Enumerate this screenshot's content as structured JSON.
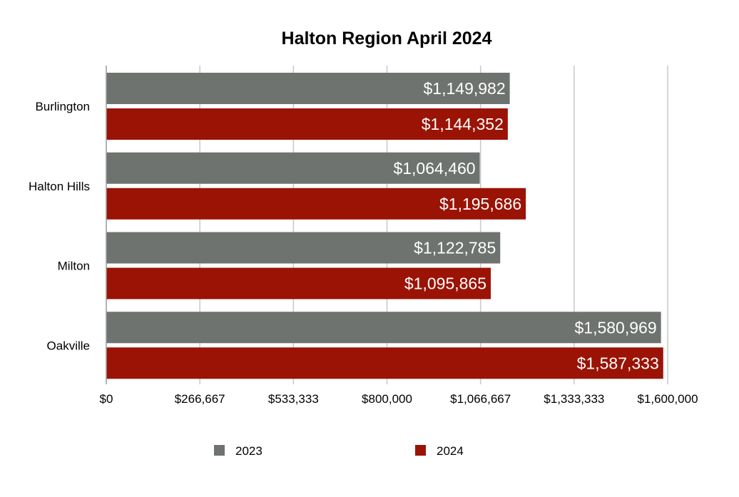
{
  "chart_data": {
    "type": "bar",
    "orientation": "horizontal",
    "title": "Halton Region April 2024",
    "categories": [
      "Burlington",
      "Halton Hills",
      "Milton",
      "Oakville"
    ],
    "series": [
      {
        "name": "2023",
        "color": "#6f7370",
        "values": [
          1149982,
          1064460,
          1122785,
          1580969
        ],
        "labels": [
          "$1,149,982",
          "$1,064,460",
          "$1,122,785",
          "$1,580,969"
        ]
      },
      {
        "name": "2024",
        "color": "#9a1305",
        "values": [
          1144352,
          1195686,
          1095865,
          1587333
        ],
        "labels": [
          "$1,144,352",
          "$1,195,686",
          "$1,095,865",
          "$1,587,333"
        ]
      }
    ],
    "xlim": [
      0,
      1600000
    ],
    "x_ticks": [
      0,
      266667,
      533333,
      800000,
      1066667,
      1333333,
      1600000
    ],
    "x_tick_labels": [
      "$0",
      "$266,667",
      "$533,333",
      "$800,000",
      "$1,066,667",
      "$1,333,333",
      "$1,600,000"
    ],
    "grid": true,
    "legend_position": "bottom"
  }
}
